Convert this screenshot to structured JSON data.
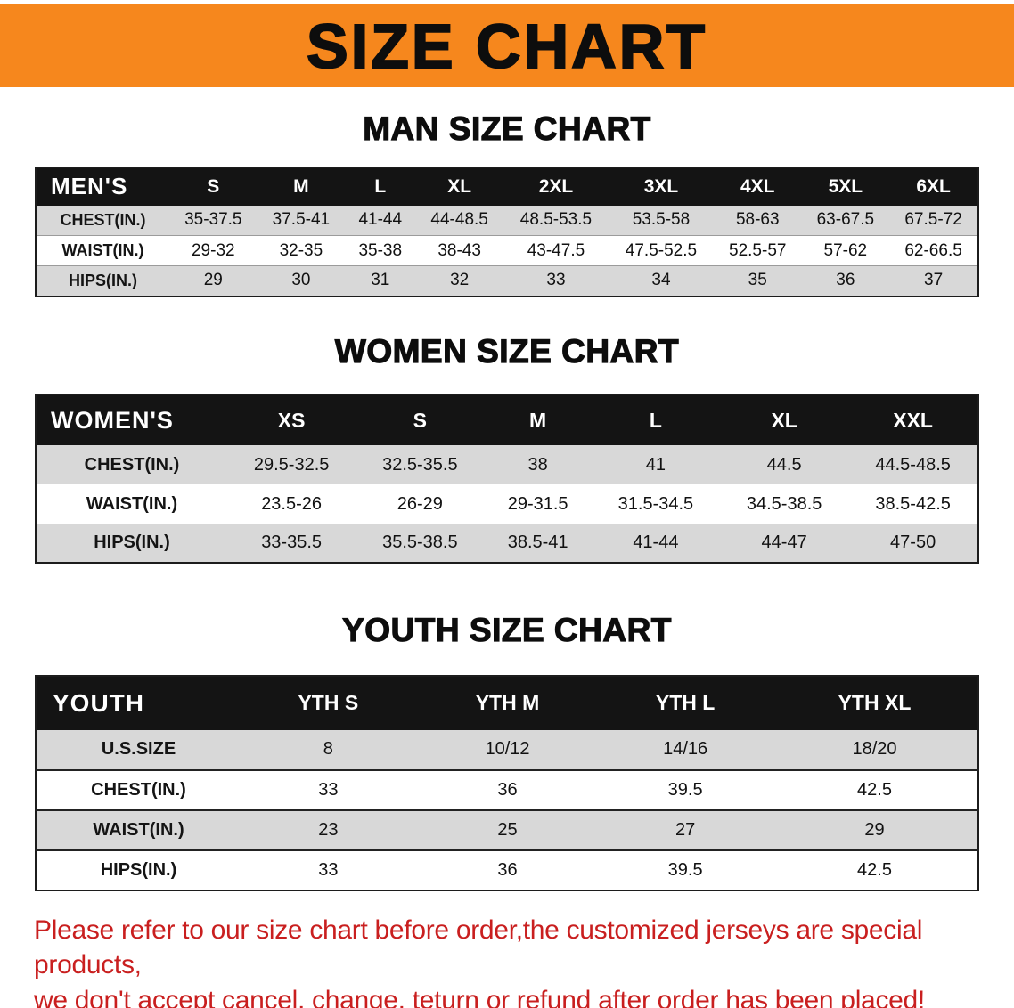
{
  "banner": {
    "title": "SIZE CHART",
    "bg_color": "#F6871D"
  },
  "sections": [
    {
      "heading": "MAN SIZE CHART",
      "table": "men"
    },
    {
      "heading": "WOMEN SIZE CHART",
      "table": "women"
    },
    {
      "heading": "YOUTH SIZE CHART",
      "table": "youth"
    }
  ],
  "tables": {
    "men": {
      "name_label": "MEN'S",
      "sizes": [
        "S",
        "M",
        "L",
        "XL",
        "2XL",
        "3XL",
        "4XL",
        "5XL",
        "6XL"
      ],
      "rows": [
        {
          "label": "CHEST(IN.)",
          "values": [
            "35-37.5",
            "37.5-41",
            "41-44",
            "44-48.5",
            "48.5-53.5",
            "53.5-58",
            "58-63",
            "63-67.5",
            "67.5-72"
          ]
        },
        {
          "label": "WAIST(IN.)",
          "values": [
            "29-32",
            "32-35",
            "35-38",
            "38-43",
            "43-47.5",
            "47.5-52.5",
            "52.5-57",
            "57-62",
            "62-66.5"
          ]
        },
        {
          "label": "HIPS(IN.)",
          "values": [
            "29",
            "30",
            "31",
            "32",
            "33",
            "34",
            "35",
            "36",
            "37"
          ]
        }
      ]
    },
    "women": {
      "name_label": "WOMEN'S",
      "sizes": [
        "XS",
        "S",
        "M",
        "L",
        "XL",
        "XXL"
      ],
      "rows": [
        {
          "label": "CHEST(IN.)",
          "values": [
            "29.5-32.5",
            "32.5-35.5",
            "38",
            "41",
            "44.5",
            "44.5-48.5"
          ]
        },
        {
          "label": "WAIST(IN.)",
          "values": [
            "23.5-26",
            "26-29",
            "29-31.5",
            "31.5-34.5",
            "34.5-38.5",
            "38.5-42.5"
          ]
        },
        {
          "label": "HIPS(IN.)",
          "values": [
            "33-35.5",
            "35.5-38.5",
            "38.5-41",
            "41-44",
            "44-47",
            "47-50"
          ]
        }
      ]
    },
    "youth": {
      "name_label": "YOUTH",
      "sizes": [
        "YTH S",
        "YTH M",
        "YTH L",
        "YTH XL"
      ],
      "rows": [
        {
          "label": "U.S.SIZE",
          "values": [
            "8",
            "10/12",
            "14/16",
            "18/20"
          ]
        },
        {
          "label": "CHEST(IN.)",
          "values": [
            "33",
            "36",
            "39.5",
            "42.5"
          ]
        },
        {
          "label": "WAIST(IN.)",
          "values": [
            "23",
            "25",
            "27",
            "29"
          ]
        },
        {
          "label": "HIPS(IN.)",
          "values": [
            "33",
            "36",
            "39.5",
            "42.5"
          ]
        }
      ]
    }
  },
  "disclaimer": {
    "lines": [
      "Please refer to our size chart before order,the customized jerseys are special products,",
      "we don't accept cancel, change, teturn or refund after order has been placed!"
    ],
    "color": "#c91f1f"
  }
}
